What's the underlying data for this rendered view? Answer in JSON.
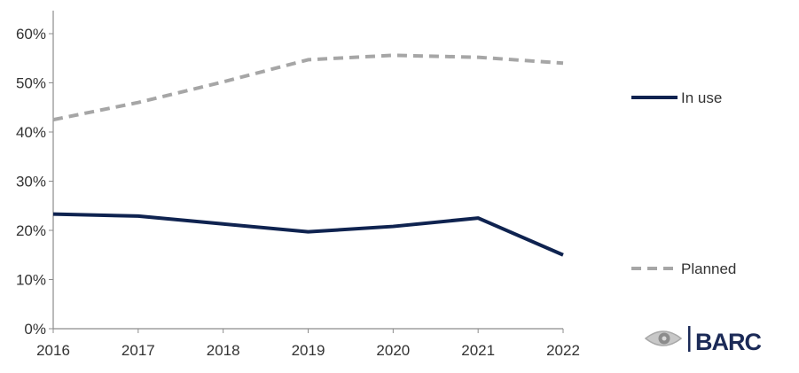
{
  "chart_data": {
    "type": "line",
    "x": [
      "2016",
      "2017",
      "2018",
      "2019",
      "2020",
      "2021",
      "2022"
    ],
    "y_ticks": [
      "0%",
      "10%",
      "20%",
      "30%",
      "40%",
      "50%",
      "60%"
    ],
    "ylim": [
      0,
      0.65
    ],
    "grid": false,
    "legend_placement": "right",
    "series": [
      {
        "name": "In use",
        "values": [
          0.233,
          0.229,
          0.213,
          0.197,
          0.208,
          0.225,
          0.15
        ],
        "color": "#0f2350",
        "style": "solid"
      },
      {
        "name": "Planned",
        "values": [
          0.425,
          0.46,
          0.502,
          0.547,
          0.556,
          0.552,
          0.54
        ],
        "color": "#a6a6a6",
        "style": "dashed"
      }
    ]
  },
  "branding": {
    "logo_text": "BARC",
    "logo_color": "#1b2a57",
    "eye_icon": "eye-icon"
  }
}
